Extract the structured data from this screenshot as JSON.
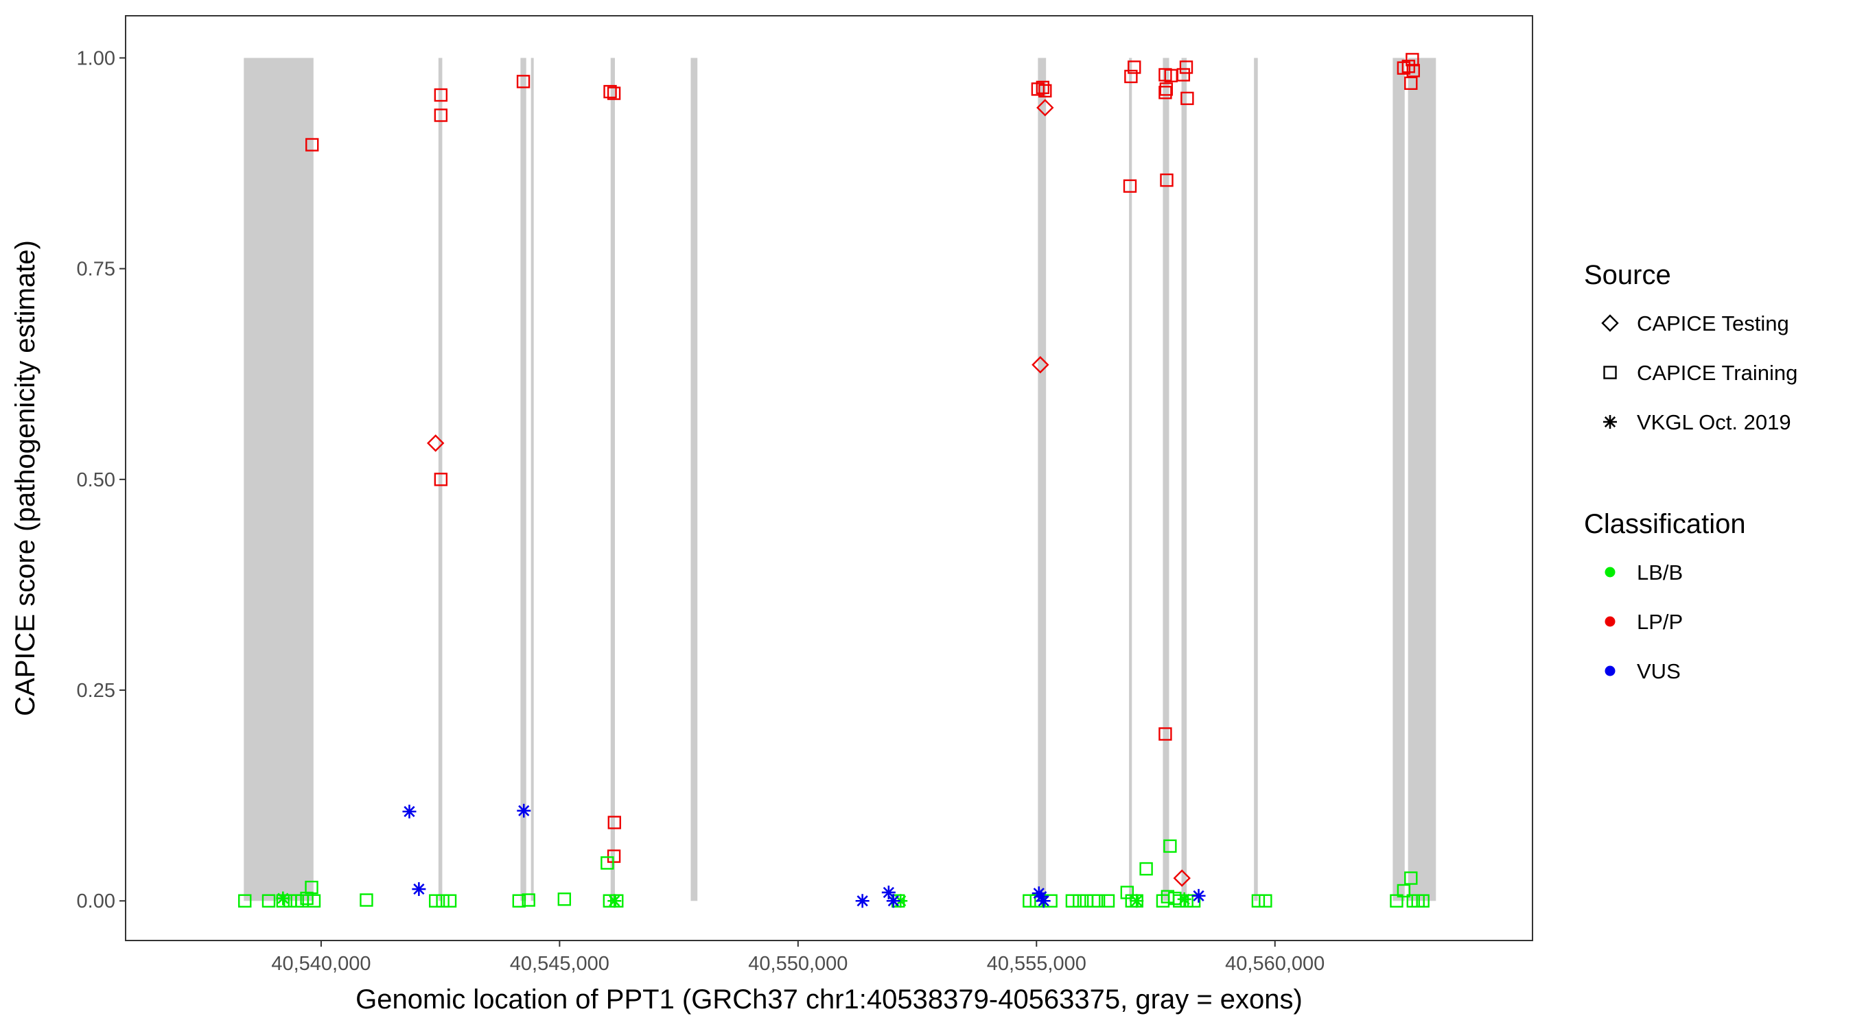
{
  "chart_data": {
    "type": "scatter",
    "xlabel": "Genomic location of PPT1 (GRCh37 chr1:40538379-40563375, gray = exons)",
    "ylabel": "CAPICE score (pathogenicity estimate)",
    "xlim": [
      40535900,
      40565400
    ],
    "ylim": [
      -0.047,
      1.05
    ],
    "x_ticks": [
      40540000,
      40545000,
      40550000,
      40555000,
      40560000
    ],
    "x_tick_labels": [
      "40,540,000",
      "40,545,000",
      "40,550,000",
      "40,555,000",
      "40,560,000"
    ],
    "y_ticks": [
      0,
      0.25,
      0.5,
      0.75,
      1.0
    ],
    "y_tick_labels": [
      "0.00",
      "0.25",
      "0.50",
      "0.75",
      "1.00"
    ],
    "grid": false,
    "legend_position": "right",
    "exons": [
      [
        40538379,
        40539840
      ],
      [
        40542460,
        40542540
      ],
      [
        40544180,
        40544300
      ],
      [
        40544400,
        40544440
      ],
      [
        40546070,
        40546160
      ],
      [
        40547750,
        40547890
      ],
      [
        40555030,
        40555200
      ],
      [
        40556940,
        40557000
      ],
      [
        40557650,
        40557780
      ],
      [
        40558040,
        40558150
      ],
      [
        40559560,
        40559640
      ],
      [
        40562470,
        40562720
      ],
      [
        40562790,
        40563375
      ]
    ],
    "colors": {
      "LB/B": "#00ee00",
      "LP/P": "#ee0000",
      "VUS": "#0000ee",
      "exon": "#cccccc"
    },
    "legend": {
      "source_title": "Source",
      "source_items": [
        {
          "label": "CAPICE Testing",
          "shape": "diamond"
        },
        {
          "label": "CAPICE Training",
          "shape": "square"
        },
        {
          "label": "VKGL Oct. 2019",
          "shape": "asterisk"
        }
      ],
      "class_title": "Classification",
      "class_items": [
        {
          "label": "LB/B",
          "color": "#00ee00"
        },
        {
          "label": "LP/P",
          "color": "#ee0000"
        },
        {
          "label": "VUS",
          "color": "#0000ee"
        }
      ]
    },
    "series": [
      {
        "source": "CAPICE Training",
        "classification": "LP/P",
        "points": [
          [
            40539810,
            0.897
          ],
          [
            40542510,
            0.956
          ],
          [
            40542510,
            0.932
          ],
          [
            40542510,
            0.5
          ],
          [
            40544240,
            0.972
          ],
          [
            40546060,
            0.96
          ],
          [
            40546140,
            0.958
          ],
          [
            40546150,
            0.093
          ],
          [
            40546140,
            0.053
          ],
          [
            40555030,
            0.963
          ],
          [
            40555130,
            0.965
          ],
          [
            40555180,
            0.961
          ],
          [
            40556980,
            0.978
          ],
          [
            40557050,
            0.989
          ],
          [
            40556960,
            0.848
          ],
          [
            40557700,
            0.98
          ],
          [
            40557820,
            0.979
          ],
          [
            40557700,
            0.959
          ],
          [
            40557720,
            0.963
          ],
          [
            40557730,
            0.855
          ],
          [
            40557700,
            0.198
          ],
          [
            40558080,
            0.98
          ],
          [
            40558140,
            0.989
          ],
          [
            40558160,
            0.952
          ],
          [
            40562700,
            0.988
          ],
          [
            40562800,
            0.99
          ],
          [
            40562880,
            0.998
          ],
          [
            40562900,
            0.985
          ],
          [
            40562850,
            0.97
          ]
        ]
      },
      {
        "source": "CAPICE Testing",
        "classification": "LP/P",
        "points": [
          [
            40542400,
            0.543
          ],
          [
            40555180,
            0.941
          ],
          [
            40555080,
            0.636
          ],
          [
            40558050,
            0.027
          ]
        ]
      },
      {
        "source": "CAPICE Training",
        "classification": "LB/B",
        "points": [
          [
            40538400,
            0.0
          ],
          [
            40538900,
            0.0
          ],
          [
            40539200,
            0.0
          ],
          [
            40539350,
            0.0
          ],
          [
            40539500,
            0.0
          ],
          [
            40539600,
            0.0
          ],
          [
            40539700,
            0.003
          ],
          [
            40539800,
            0.016
          ],
          [
            40539850,
            0.0
          ],
          [
            40540950,
            0.001
          ],
          [
            40542400,
            0.0
          ],
          [
            40542550,
            0.0
          ],
          [
            40542700,
            0.0
          ],
          [
            40544150,
            0.0
          ],
          [
            40544350,
            0.001
          ],
          [
            40545100,
            0.002
          ],
          [
            40546000,
            0.045
          ],
          [
            40546050,
            0.0
          ],
          [
            40546200,
            0.0
          ],
          [
            40552100,
            0.0
          ],
          [
            40554850,
            0.0
          ],
          [
            40555000,
            0.0
          ],
          [
            40555300,
            0.0
          ],
          [
            40555750,
            0.0
          ],
          [
            40555900,
            0.0
          ],
          [
            40556050,
            0.0
          ],
          [
            40556200,
            0.0
          ],
          [
            40556300,
            0.0
          ],
          [
            40556500,
            0.0
          ],
          [
            40556900,
            0.01
          ],
          [
            40557000,
            0.0
          ],
          [
            40557100,
            0.0
          ],
          [
            40557300,
            0.038
          ],
          [
            40557650,
            0.0
          ],
          [
            40557750,
            0.005
          ],
          [
            40557800,
            0.065
          ],
          [
            40557900,
            0.003
          ],
          [
            40558000,
            0.0
          ],
          [
            40558150,
            0.0
          ],
          [
            40558300,
            0.0
          ],
          [
            40559650,
            0.0
          ],
          [
            40559800,
            0.0
          ],
          [
            40562550,
            0.0
          ],
          [
            40562700,
            0.012
          ],
          [
            40562850,
            0.027
          ],
          [
            40562900,
            0.0
          ],
          [
            40563000,
            0.0
          ],
          [
            40563100,
            0.0
          ]
        ]
      },
      {
        "source": "VKGL Oct. 2019",
        "classification": "LB/B",
        "points": [
          [
            40539200,
            0.003
          ],
          [
            40546150,
            0.0
          ],
          [
            40552150,
            0.0
          ],
          [
            40557100,
            0.0
          ],
          [
            40558100,
            0.002
          ]
        ]
      },
      {
        "source": "VKGL Oct. 2019",
        "classification": "VUS",
        "points": [
          [
            40541850,
            0.106
          ],
          [
            40542050,
            0.014
          ],
          [
            40544250,
            0.107
          ],
          [
            40551350,
            0.0
          ],
          [
            40551900,
            0.01
          ],
          [
            40552000,
            0.0
          ],
          [
            40555050,
            0.009
          ],
          [
            40555100,
            0.005
          ],
          [
            40555150,
            0.0
          ],
          [
            40558400,
            0.006
          ]
        ]
      }
    ]
  }
}
